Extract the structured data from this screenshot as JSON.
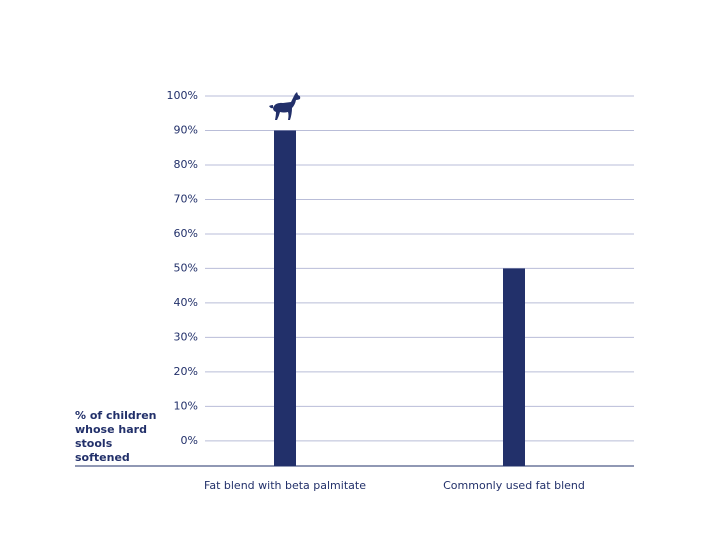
{
  "chart_data": {
    "type": "bar",
    "y_axis_label": "% of children whose hard stools softened",
    "categories": [
      "Fat blend with beta palmitate",
      "Commonly used fat blend"
    ],
    "values": [
      90,
      50
    ],
    "color": "#22306a",
    "ylim": [
      -7,
      100
    ],
    "yticks": [
      {
        "value": 0,
        "label": "0%"
      },
      {
        "value": 10,
        "label": "10%"
      },
      {
        "value": 20,
        "label": "20%"
      },
      {
        "value": 30,
        "label": "30%"
      },
      {
        "value": 40,
        "label": "40%"
      },
      {
        "value": 50,
        "label": "50%"
      },
      {
        "value": 60,
        "label": "60%"
      },
      {
        "value": 70,
        "label": "70%"
      },
      {
        "value": 80,
        "label": "80%"
      },
      {
        "value": 90,
        "label": "90%"
      },
      {
        "value": 100,
        "label": "100%"
      }
    ],
    "grid": true
  }
}
